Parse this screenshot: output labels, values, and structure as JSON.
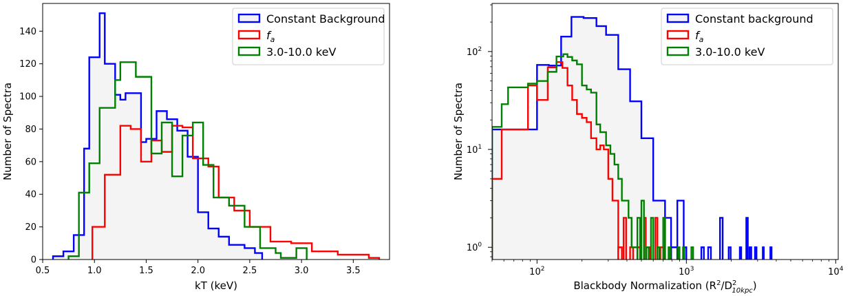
{
  "chart_data": [
    {
      "type": "histogram",
      "xlabel": "kT (keV)",
      "ylabel": "Number of Spectra",
      "xlim": [
        0.5,
        3.85
      ],
      "ylim": [
        0,
        157
      ],
      "xticks": [
        "0.5",
        "1.0",
        "1.5",
        "2.0",
        "2.5",
        "3.0",
        "3.5"
      ],
      "yticks": [
        "0",
        "20",
        "40",
        "60",
        "80",
        "100",
        "120",
        "140"
      ],
      "legend_position": "top-right",
      "series": [
        {
          "name": "Constant Background",
          "color": "#0000ff",
          "filled": true,
          "edges": [
            0.6,
            0.7,
            0.8,
            0.9,
            0.95,
            1.05,
            1.1,
            1.2,
            1.25,
            1.3,
            1.45,
            1.5,
            1.6,
            1.7,
            1.8,
            1.9,
            2.0,
            2.1,
            2.2,
            2.3,
            2.45,
            2.55,
            2.62
          ],
          "values": [
            2,
            5,
            15,
            68,
            124,
            151,
            120,
            101,
            98,
            102,
            72,
            74,
            91,
            86,
            79,
            63,
            29,
            19,
            14,
            9,
            7,
            4
          ]
        },
        {
          "name": "f_a",
          "label_main": "f",
          "label_sub": "a",
          "color": "#ff0000",
          "filled": false,
          "edges": [
            0.98,
            1.1,
            1.25,
            1.35,
            1.45,
            1.55,
            1.65,
            1.75,
            1.85,
            1.95,
            2.1,
            2.2,
            2.35,
            2.5,
            2.7,
            2.9,
            3.1,
            3.35,
            3.65,
            3.75
          ],
          "values": [
            20,
            52,
            82,
            80,
            60,
            73,
            66,
            82,
            81,
            62,
            57,
            38,
            30,
            20,
            11,
            10,
            5,
            3,
            1
          ]
        },
        {
          "name": "3.0-10.0 keV",
          "color": "#008000",
          "filled": false,
          "edges": [
            0.75,
            0.85,
            0.95,
            1.05,
            1.2,
            1.25,
            1.4,
            1.55,
            1.65,
            1.75,
            1.85,
            1.95,
            2.05,
            2.15,
            2.3,
            2.45,
            2.6,
            2.75,
            2.8,
            2.95,
            3.05
          ],
          "values": [
            2,
            41,
            59,
            93,
            110,
            121,
            112,
            65,
            84,
            51,
            76,
            84,
            58,
            38,
            33,
            20,
            7,
            4,
            1,
            7
          ]
        }
      ]
    },
    {
      "type": "histogram",
      "xlabel": "Blackbody Normalization (R",
      "xlabel_parts": [
        "2",
        "/D",
        "2",
        "10kpc",
        ")"
      ],
      "ylabel": "Number of Spectra",
      "xscale": "log",
      "yscale": "log",
      "xlim": [
        50,
        10400
      ],
      "ylim": [
        0.75,
        310
      ],
      "xticks": [
        {
          "base": "10",
          "exp": "2",
          "value": 100
        },
        {
          "base": "10",
          "exp": "3",
          "value": 1000
        },
        {
          "base": "10",
          "exp": "4",
          "value": 10000
        }
      ],
      "yticks": [
        {
          "base": "10",
          "exp": "0",
          "value": 1
        },
        {
          "base": "10",
          "exp": "1",
          "value": 10
        },
        {
          "base": "10",
          "exp": "2",
          "value": 100
        }
      ],
      "legend_position": "top-right",
      "series": [
        {
          "name": "Constant background",
          "color": "#0000ff",
          "filled": true,
          "edges": [
            50,
            100,
            120,
            145,
            170,
            205,
            250,
            290,
            350,
            420,
            500,
            600,
            720
          ],
          "values": [
            16,
            73,
            72,
            142,
            226,
            220,
            182,
            148,
            66,
            31,
            13,
            3
          ],
          "tail": [
            [
              720,
              790,
              2
            ],
            [
              790,
              870,
              1
            ],
            [
              870,
              960,
              3
            ],
            [
              960,
              1000,
              1
            ],
            [
              1260,
              1310,
              1
            ],
            [
              1400,
              1460,
              1
            ],
            [
              1680,
              1750,
              2
            ],
            [
              1920,
              1980,
              1
            ],
            [
              2280,
              2330,
              1
            ],
            [
              2520,
              2580,
              2
            ],
            [
              2650,
              2720,
              1
            ],
            [
              2880,
              2950,
              1
            ],
            [
              3250,
              3300,
              1
            ],
            [
              3650,
              3720,
              1
            ]
          ]
        },
        {
          "name": "f_a",
          "label_main": "f",
          "label_sub": "a",
          "color": "#ff0000",
          "filled": false,
          "edges": [
            50,
            58,
            87,
            100,
            118,
            135,
            148,
            160,
            172,
            185,
            200,
            215,
            230,
            250,
            265,
            280,
            300,
            320,
            350
          ],
          "values": [
            5,
            16,
            45,
            32,
            69,
            78,
            68,
            45,
            32,
            23,
            21,
            19,
            13,
            10,
            11,
            10,
            5,
            3
          ],
          "tail": [
            [
              350,
              370,
              1
            ],
            [
              380,
              395,
              2
            ],
            [
              420,
              440,
              1
            ],
            [
              470,
              490,
              1
            ],
            [
              520,
              535,
              2
            ],
            [
              560,
              575,
              1
            ],
            [
              620,
              640,
              2
            ],
            [
              670,
              700,
              1
            ]
          ]
        },
        {
          "name": "3.0-10.0 keV",
          "color": "#008000",
          "filled": false,
          "edges": [
            50,
            58,
            64,
            87,
            100,
            118,
            135,
            150,
            160,
            172,
            185,
            200,
            215,
            230,
            250,
            265,
            290,
            310,
            330,
            350,
            370,
            390,
            410,
            430,
            450,
            470
          ],
          "values": [
            17,
            29,
            43,
            47,
            50,
            62,
            89,
            94,
            88,
            81,
            74,
            45,
            41,
            38,
            18,
            15,
            11,
            9,
            7,
            5,
            3,
            3,
            2,
            1,
            1
          ],
          "tail": [
            [
              470,
              490,
              2
            ],
            [
              500,
              520,
              3
            ],
            [
              540,
              560,
              1
            ],
            [
              580,
              600,
              2
            ],
            [
              640,
              660,
              1
            ],
            [
              700,
              720,
              2
            ],
            [
              760,
              780,
              1
            ],
            [
              880,
              900,
              1
            ],
            [
              950,
              970,
              1
            ],
            [
              1080,
              1110,
              1
            ]
          ]
        }
      ]
    }
  ]
}
